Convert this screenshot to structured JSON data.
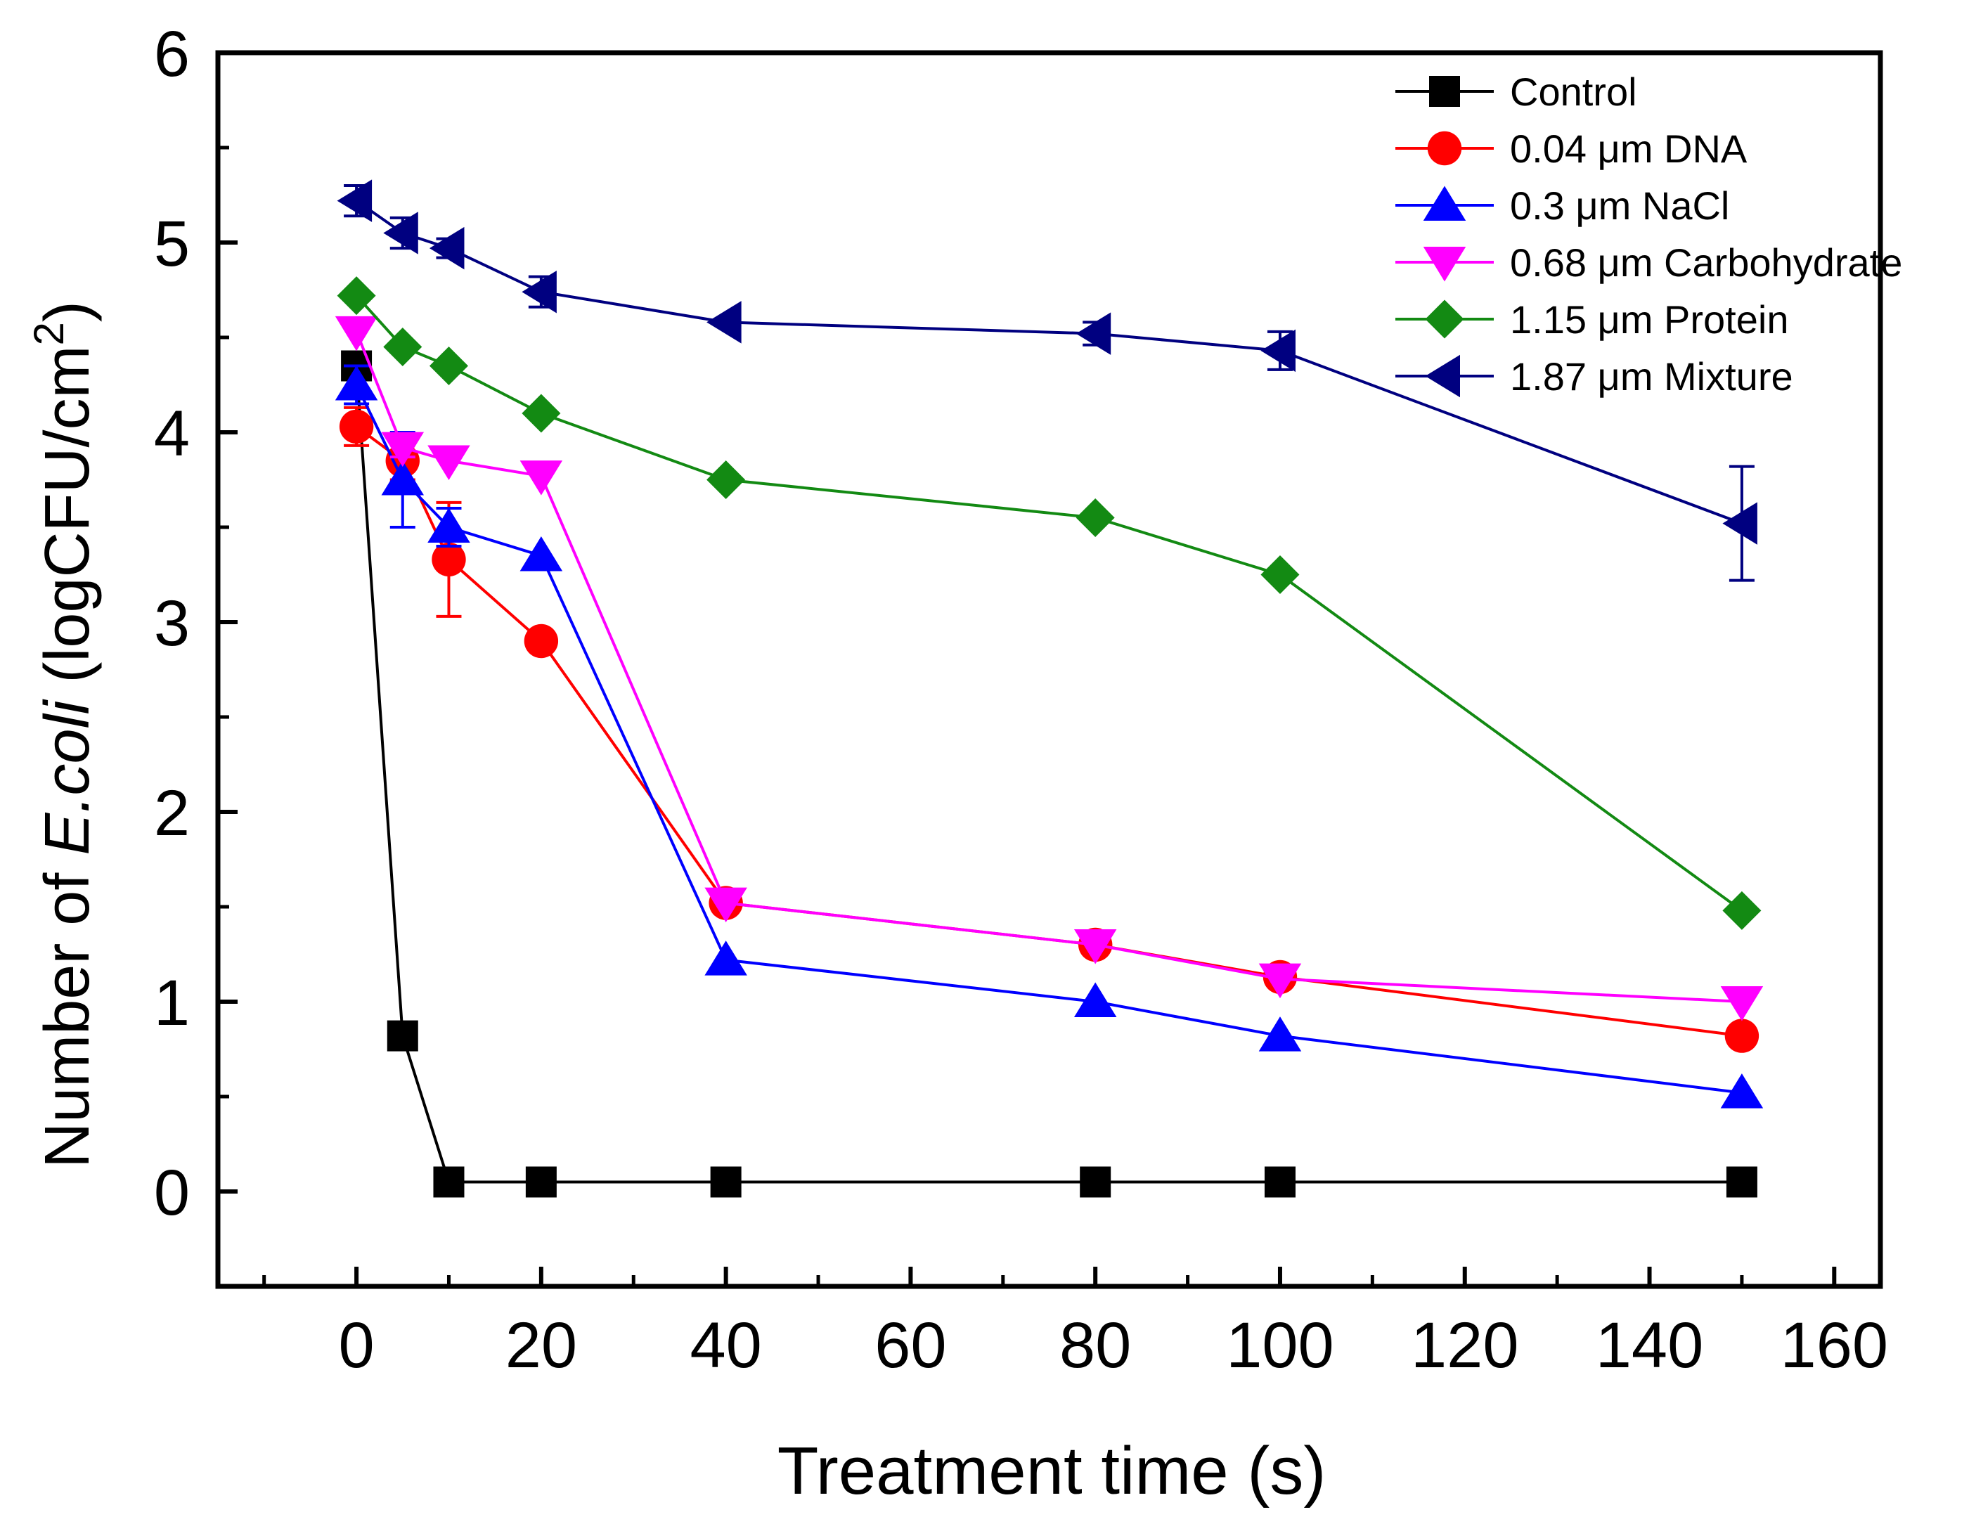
{
  "chart_data": {
    "type": "line",
    "title": "",
    "xlabel": "Treatment time (s)",
    "ylabel": {
      "prefix": "Number of ",
      "italic": "E.coli",
      "suffix": " (logCFU/cm",
      "superscript": "2",
      "close": ")"
    },
    "xlim": [
      -15,
      165
    ],
    "ylim": [
      -0.5,
      6
    ],
    "x_ticks": [
      0,
      20,
      40,
      60,
      80,
      100,
      120,
      140,
      160
    ],
    "y_ticks": [
      0,
      1,
      2,
      3,
      4,
      5,
      6
    ],
    "x_tick_labels": [
      "0",
      "20",
      "40",
      "60",
      "80",
      "100",
      "120",
      "140",
      "160"
    ],
    "y_tick_labels": [
      "0",
      "1",
      "2",
      "3",
      "4",
      "5",
      "6"
    ],
    "legend_position": "top-right",
    "x": [
      0,
      5,
      10,
      20,
      40,
      80,
      100,
      150
    ],
    "series": [
      {
        "name": "Control",
        "color": "#000000",
        "marker": "square",
        "values": [
          4.35,
          0.82,
          0.05,
          0.05,
          0.05,
          0.05,
          0.05,
          0.05
        ],
        "errors": [
          0,
          0,
          0,
          0,
          0,
          0,
          0,
          0
        ]
      },
      {
        "name": "0.04 μm DNA",
        "color": "#ff0000",
        "marker": "circle",
        "values": [
          4.03,
          3.85,
          3.33,
          2.9,
          1.52,
          1.3,
          1.13,
          0.82
        ],
        "errors": [
          0.1,
          0.1,
          0.3,
          0,
          0,
          0,
          0,
          0
        ]
      },
      {
        "name": "0.3 μm NaCl",
        "color": "#0000ff",
        "marker": "triangle-up",
        "values": [
          4.25,
          3.75,
          3.5,
          3.35,
          1.22,
          1.0,
          0.82,
          0.52
        ],
        "errors": [
          0.1,
          0.25,
          0.1,
          0,
          0,
          0,
          0,
          0
        ]
      },
      {
        "name": "0.68 μm Carbohydrate",
        "color": "#ff00ff",
        "marker": "triangle-down",
        "values": [
          4.53,
          3.92,
          3.85,
          3.77,
          1.52,
          1.3,
          1.12,
          1.0
        ],
        "errors": [
          0,
          0.05,
          0,
          0,
          0,
          0,
          0,
          0
        ]
      },
      {
        "name": "1.15 μm Protein",
        "color": "#138a13",
        "marker": "diamond",
        "values": [
          4.72,
          4.45,
          4.35,
          4.1,
          3.75,
          3.55,
          3.25,
          1.48
        ],
        "errors": [
          0,
          0,
          0,
          0,
          0,
          0,
          0,
          0
        ]
      },
      {
        "name": "1.87 μm Mixture",
        "color": "#000080",
        "marker": "triangle-left",
        "values": [
          5.22,
          5.05,
          4.97,
          4.74,
          4.58,
          4.52,
          4.43,
          3.52
        ],
        "errors": [
          0.08,
          0.08,
          0.05,
          0.08,
          0,
          0.06,
          0.1,
          0.3
        ]
      }
    ]
  }
}
